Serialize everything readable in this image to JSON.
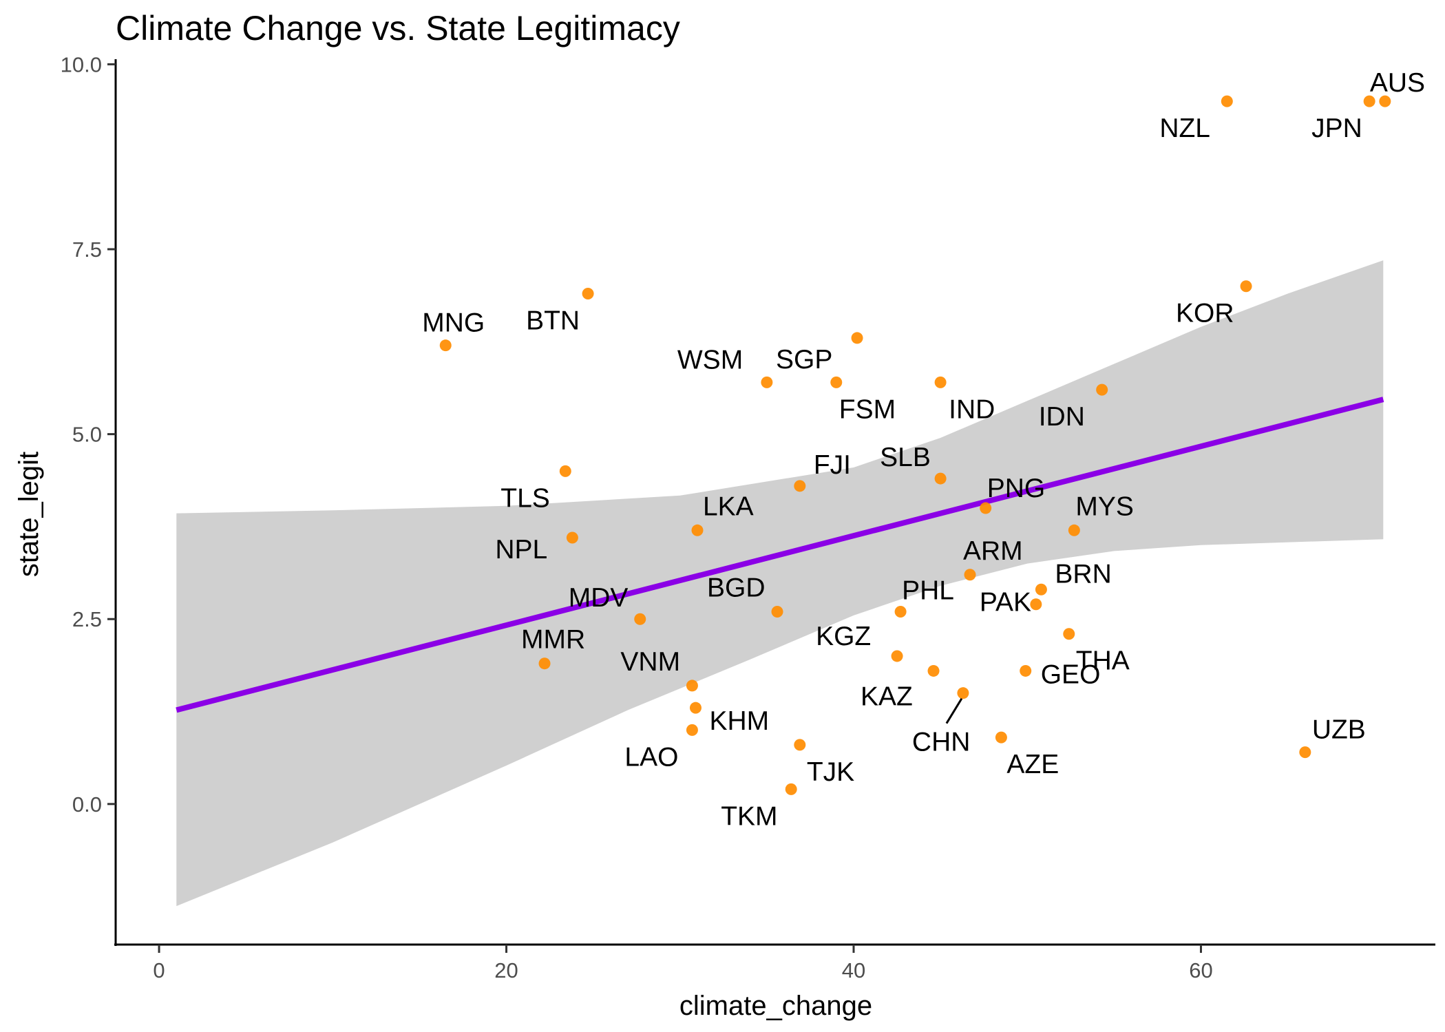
{
  "chart_data": {
    "type": "scatter",
    "title": "Climate Change vs. State Legitimacy",
    "xlabel": "climate_change",
    "ylabel": "state_legit",
    "xlim": [
      -2.5,
      73.5
    ],
    "ylim": [
      -1.9,
      10.05
    ],
    "x_ticks": [
      0,
      20,
      40,
      60
    ],
    "y_ticks": [
      0.0,
      2.5,
      5.0,
      7.5,
      10.0
    ],
    "x_tick_labels": [
      "0",
      "20",
      "40",
      "60"
    ],
    "y_tick_labels": [
      "0.0",
      "2.5",
      "5.0",
      "7.5",
      "10.0"
    ],
    "grid": false,
    "legend": "none",
    "point_color": "#ff8c00",
    "line_color": "#8b00e6",
    "band_color": "#d0d0d0",
    "trend_line": {
      "type": "linear",
      "x": [
        1.0,
        70.5
      ],
      "y": [
        1.27,
        5.47
      ],
      "ci_upper": [
        [
          1.0,
          3.93
        ],
        [
          10.0,
          3.97
        ],
        [
          20.0,
          4.03
        ],
        [
          30.0,
          4.17
        ],
        [
          40.0,
          4.55
        ],
        [
          45.0,
          4.95
        ],
        [
          50.0,
          5.45
        ],
        [
          55.0,
          5.95
        ],
        [
          60.0,
          6.45
        ],
        [
          65.0,
          6.9
        ],
        [
          70.5,
          7.35
        ]
      ],
      "ci_lower": [
        [
          1.0,
          -1.38
        ],
        [
          10.0,
          -0.52
        ],
        [
          20.0,
          0.52
        ],
        [
          27.0,
          1.27
        ],
        [
          34.0,
          1.95
        ],
        [
          40.0,
          2.55
        ],
        [
          45.0,
          2.95
        ],
        [
          50.0,
          3.25
        ],
        [
          55.0,
          3.42
        ],
        [
          60.0,
          3.5
        ],
        [
          70.5,
          3.58
        ]
      ]
    },
    "points": [
      {
        "label": "AUS",
        "x": 70.6,
        "y": 9.5
      },
      {
        "label": "JPN",
        "x": 69.7,
        "y": 9.5
      },
      {
        "label": "NZL",
        "x": 61.5,
        "y": 9.5
      },
      {
        "label": "KOR",
        "x": 62.6,
        "y": 7.0
      },
      {
        "label": "BTN",
        "x": 24.7,
        "y": 6.9
      },
      {
        "label": "MNG",
        "x": 16.5,
        "y": 6.2
      },
      {
        "label": "SGP",
        "x": 40.2,
        "y": 6.3
      },
      {
        "label": "WSM",
        "x": 35.0,
        "y": 5.7
      },
      {
        "label": "FSM",
        "x": 39.0,
        "y": 5.7
      },
      {
        "label": "IND",
        "x": 45.0,
        "y": 5.7
      },
      {
        "label": "IDN",
        "x": 54.3,
        "y": 5.6
      },
      {
        "label": "TLS",
        "x": 23.4,
        "y": 4.5
      },
      {
        "label": "FJI",
        "x": 36.9,
        "y": 4.3
      },
      {
        "label": "SLB",
        "x": 45.0,
        "y": 4.4
      },
      {
        "label": "PNG",
        "x": 47.6,
        "y": 4.0
      },
      {
        "label": "MYS",
        "x": 52.7,
        "y": 3.7
      },
      {
        "label": "LKA",
        "x": 31.0,
        "y": 3.7
      },
      {
        "label": "NPL",
        "x": 23.8,
        "y": 3.6
      },
      {
        "label": "ARM",
        "x": 46.7,
        "y": 3.1
      },
      {
        "label": "BRN",
        "x": 50.8,
        "y": 2.9
      },
      {
        "label": "MDV",
        "x": 27.7,
        "y": 2.5
      },
      {
        "label": "BGD",
        "x": 35.6,
        "y": 2.6
      },
      {
        "label": "PHL",
        "x": 42.7,
        "y": 2.6
      },
      {
        "label": "PAK",
        "x": 50.5,
        "y": 2.7
      },
      {
        "label": "THA",
        "x": 52.4,
        "y": 2.3
      },
      {
        "label": "MMR",
        "x": 22.2,
        "y": 1.9
      },
      {
        "label": "KGZ",
        "x": 42.5,
        "y": 2.0
      },
      {
        "label": "VNM",
        "x": 30.7,
        "y": 1.6
      },
      {
        "label": "KAZ",
        "x": 44.6,
        "y": 1.8
      },
      {
        "label": "GEO",
        "x": 49.9,
        "y": 1.8
      },
      {
        "label": "CHN",
        "x": 46.3,
        "y": 1.5
      },
      {
        "label": "KHM",
        "x": 30.9,
        "y": 1.3
      },
      {
        "label": "LAO",
        "x": 30.7,
        "y": 1.0
      },
      {
        "label": "AZE",
        "x": 48.5,
        "y": 0.9
      },
      {
        "label": "TJK",
        "x": 36.9,
        "y": 0.8
      },
      {
        "label": "TKM",
        "x": 36.4,
        "y": 0.2
      },
      {
        "label": "UZB",
        "x": 66.0,
        "y": 0.7
      }
    ]
  }
}
